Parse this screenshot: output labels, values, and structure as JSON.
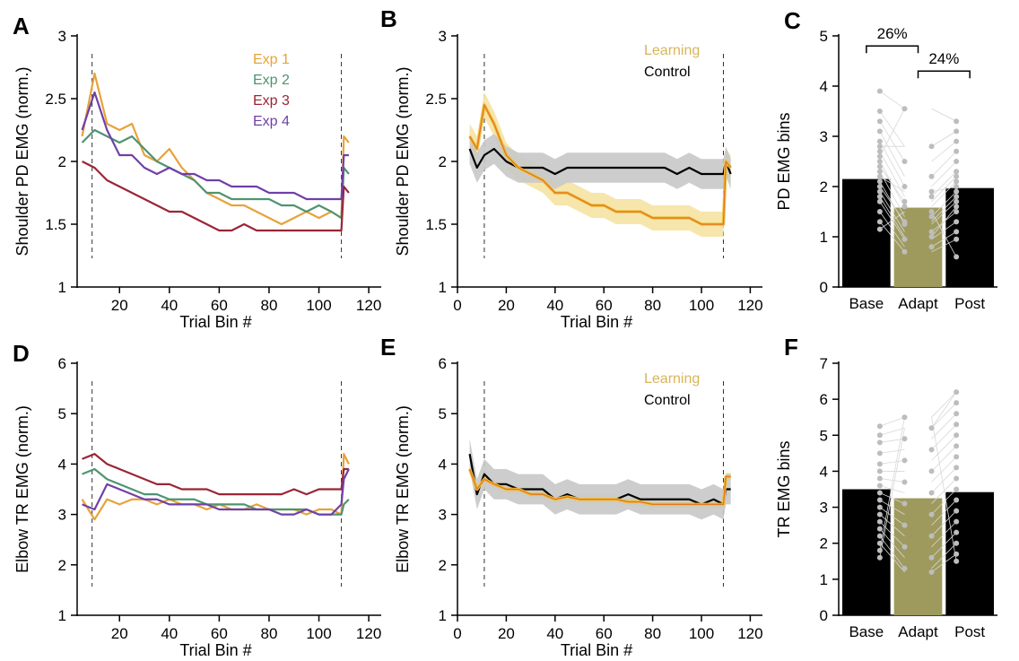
{
  "chart_data": [
    {
      "panel": "A",
      "type": "line",
      "xlabel": "Trial Bin #",
      "ylabel": "Shoulder PD EMG (norm.)",
      "xlim": [
        3,
        125
      ],
      "ylim": [
        1,
        3
      ],
      "xticks": [
        20,
        40,
        60,
        80,
        100,
        120
      ],
      "yticks": [
        1,
        1.5,
        2,
        2.5,
        3
      ],
      "vlines": [
        9,
        109
      ],
      "legend_position": "top-right",
      "colors": {
        "Exp 1": "#e8a23a",
        "Exp 2": "#4e9470",
        "Exp 3": "#9b2535",
        "Exp 4": "#7040a8"
      },
      "series": [
        {
          "name": "Exp 1",
          "x": [
            5,
            10,
            15,
            20,
            25,
            30,
            35,
            40,
            45,
            50,
            55,
            60,
            65,
            70,
            75,
            80,
            85,
            90,
            95,
            100,
            105,
            109,
            110,
            112
          ],
          "y": [
            2.2,
            2.7,
            2.3,
            2.25,
            2.3,
            2.05,
            2.0,
            2.1,
            1.95,
            1.85,
            1.75,
            1.7,
            1.65,
            1.65,
            1.6,
            1.55,
            1.5,
            1.55,
            1.6,
            1.55,
            1.6,
            1.55,
            2.2,
            2.15
          ]
        },
        {
          "name": "Exp 2",
          "x": [
            5,
            10,
            15,
            20,
            25,
            30,
            35,
            40,
            45,
            50,
            55,
            60,
            65,
            70,
            75,
            80,
            85,
            90,
            95,
            100,
            105,
            109,
            110,
            112
          ],
          "y": [
            2.15,
            2.25,
            2.2,
            2.15,
            2.2,
            2.1,
            2.0,
            1.95,
            1.9,
            1.85,
            1.75,
            1.75,
            1.7,
            1.7,
            1.7,
            1.7,
            1.65,
            1.65,
            1.6,
            1.65,
            1.6,
            1.55,
            1.95,
            1.9
          ]
        },
        {
          "name": "Exp 3",
          "x": [
            5,
            10,
            15,
            20,
            25,
            30,
            35,
            40,
            45,
            50,
            55,
            60,
            65,
            70,
            75,
            80,
            85,
            90,
            95,
            100,
            105,
            109,
            110,
            112
          ],
          "y": [
            2.0,
            1.95,
            1.85,
            1.8,
            1.75,
            1.7,
            1.65,
            1.6,
            1.6,
            1.55,
            1.5,
            1.45,
            1.45,
            1.5,
            1.45,
            1.45,
            1.45,
            1.45,
            1.45,
            1.45,
            1.45,
            1.45,
            1.8,
            1.75
          ]
        },
        {
          "name": "Exp 4",
          "x": [
            5,
            10,
            15,
            20,
            25,
            30,
            35,
            40,
            45,
            50,
            55,
            60,
            65,
            70,
            75,
            80,
            85,
            90,
            95,
            100,
            105,
            109,
            110,
            112
          ],
          "y": [
            2.25,
            2.55,
            2.25,
            2.05,
            2.05,
            1.95,
            1.9,
            1.95,
            1.9,
            1.9,
            1.85,
            1.85,
            1.8,
            1.8,
            1.8,
            1.75,
            1.75,
            1.75,
            1.7,
            1.7,
            1.7,
            1.7,
            2.05,
            2.05
          ]
        }
      ]
    },
    {
      "panel": "B",
      "type": "line",
      "xlabel": "Trial Bin #",
      "ylabel": "Shoulder PD EMG (norm.)",
      "xlim": [
        0,
        125
      ],
      "ylim": [
        1,
        3
      ],
      "xticks": [
        0,
        20,
        40,
        60,
        80,
        100,
        120
      ],
      "yticks": [
        1,
        1.5,
        2,
        2.5,
        3
      ],
      "vlines": [
        11,
        109
      ],
      "legend_position": "top-right",
      "colors": {
        "Learning": "#e8a23a",
        "Learning_band": "#f5e3a3",
        "Control": "#000000",
        "Control_band": "#cccccc",
        "Learning_line": "#e07a20"
      },
      "series": [
        {
          "name": "Learning",
          "x": [
            5,
            8,
            11,
            15,
            20,
            25,
            30,
            35,
            40,
            45,
            50,
            55,
            60,
            65,
            70,
            75,
            80,
            85,
            90,
            95,
            100,
            105,
            109,
            110,
            112
          ],
          "y": [
            2.2,
            2.1,
            2.45,
            2.3,
            2.05,
            1.95,
            1.9,
            1.85,
            1.75,
            1.75,
            1.7,
            1.65,
            1.65,
            1.6,
            1.6,
            1.6,
            1.55,
            1.55,
            1.55,
            1.55,
            1.5,
            1.5,
            1.5,
            2.0,
            1.95
          ],
          "err": 0.1
        },
        {
          "name": "Control",
          "x": [
            5,
            8,
            11,
            15,
            20,
            25,
            30,
            35,
            40,
            45,
            50,
            55,
            60,
            65,
            70,
            75,
            80,
            85,
            90,
            95,
            100,
            105,
            109,
            110,
            112
          ],
          "y": [
            2.1,
            1.95,
            2.05,
            2.1,
            2.0,
            1.95,
            1.95,
            1.95,
            1.9,
            1.95,
            1.95,
            1.95,
            1.95,
            1.95,
            1.95,
            1.95,
            1.95,
            1.95,
            1.9,
            1.95,
            1.9,
            1.9,
            1.9,
            2.0,
            1.9
          ],
          "err": 0.12
        }
      ]
    },
    {
      "panel": "C",
      "type": "bar",
      "ylabel": "PD EMG bins",
      "categories": [
        "Base",
        "Adapt",
        "Post"
      ],
      "category_colors": [
        "#000000",
        "#9e9a5e",
        "#000000"
      ],
      "values": [
        2.15,
        1.58,
        1.97
      ],
      "ylim": [
        0,
        5
      ],
      "yticks": [
        0,
        1,
        2,
        3,
        4,
        5
      ],
      "annotations": [
        {
          "text": "26%",
          "from": "Base",
          "to": "Adapt",
          "y": 4.8
        },
        {
          "text": "24%",
          "from": "Adapt",
          "to": "Post",
          "y": 4.3
        }
      ],
      "points": {
        "Base": [
          3.9,
          3.5,
          3.3,
          3.1,
          2.9,
          2.7,
          2.5,
          2.3,
          2.1,
          1.9,
          1.7,
          1.5,
          1.3,
          1.15,
          2.4,
          2.2,
          2.0,
          1.8,
          2.6,
          2.8
        ],
        "Adapt": [
          3.55,
          2.8,
          2.5,
          2.2,
          2.0,
          1.8,
          1.6,
          1.4,
          1.25,
          1.1,
          0.95,
          0.8,
          0.7,
          1.5,
          1.7,
          1.9,
          1.3,
          1.0
        ],
        "Post": [
          3.3,
          3.1,
          2.9,
          2.7,
          2.5,
          2.3,
          2.1,
          1.9,
          1.7,
          1.5,
          1.3,
          1.1,
          0.95,
          0.6,
          2.2,
          2.0,
          1.8,
          1.6
        ]
      }
    },
    {
      "panel": "D",
      "type": "line",
      "xlabel": "Trial Bin #",
      "ylabel": "Elbow TR EMG (norm.)",
      "xlim": [
        3,
        125
      ],
      "ylim": [
        1,
        6
      ],
      "xticks": [
        20,
        40,
        60,
        80,
        100,
        120
      ],
      "yticks": [
        1,
        2,
        3,
        4,
        5,
        6
      ],
      "vlines": [
        9,
        109
      ],
      "series": [
        {
          "name": "Exp 1",
          "x": [
            5,
            10,
            15,
            20,
            25,
            30,
            35,
            40,
            45,
            50,
            55,
            60,
            65,
            70,
            75,
            80,
            85,
            90,
            95,
            100,
            105,
            109,
            110,
            112
          ],
          "y": [
            3.3,
            2.9,
            3.3,
            3.2,
            3.3,
            3.3,
            3.2,
            3.3,
            3.2,
            3.2,
            3.1,
            3.2,
            3.1,
            3.1,
            3.2,
            3.1,
            3.1,
            3.1,
            3.0,
            3.1,
            3.1,
            3.0,
            4.2,
            4.0
          ]
        },
        {
          "name": "Exp 2",
          "x": [
            5,
            10,
            15,
            20,
            25,
            30,
            35,
            40,
            45,
            50,
            55,
            60,
            65,
            70,
            75,
            80,
            85,
            90,
            95,
            100,
            105,
            109,
            110,
            112
          ],
          "y": [
            3.8,
            3.9,
            3.7,
            3.6,
            3.5,
            3.4,
            3.4,
            3.3,
            3.3,
            3.3,
            3.2,
            3.2,
            3.2,
            3.2,
            3.1,
            3.1,
            3.1,
            3.1,
            3.1,
            3.0,
            3.0,
            3.0,
            3.2,
            3.3
          ]
        },
        {
          "name": "Exp 3",
          "x": [
            5,
            10,
            15,
            20,
            25,
            30,
            35,
            40,
            45,
            50,
            55,
            60,
            65,
            70,
            75,
            80,
            85,
            90,
            95,
            100,
            105,
            109,
            110,
            112
          ],
          "y": [
            4.1,
            4.2,
            4.0,
            3.9,
            3.8,
            3.7,
            3.6,
            3.6,
            3.5,
            3.5,
            3.5,
            3.4,
            3.4,
            3.4,
            3.4,
            3.4,
            3.4,
            3.5,
            3.4,
            3.5,
            3.5,
            3.5,
            3.9,
            3.9
          ]
        },
        {
          "name": "Exp 4",
          "x": [
            5,
            10,
            15,
            20,
            25,
            30,
            35,
            40,
            45,
            50,
            55,
            60,
            65,
            70,
            75,
            80,
            85,
            90,
            95,
            100,
            105,
            109,
            110,
            112
          ],
          "y": [
            3.2,
            3.1,
            3.6,
            3.5,
            3.4,
            3.3,
            3.3,
            3.2,
            3.2,
            3.2,
            3.2,
            3.1,
            3.1,
            3.1,
            3.1,
            3.1,
            3.0,
            3.0,
            3.1,
            3.0,
            3.0,
            3.2,
            3.7,
            3.9
          ]
        }
      ]
    },
    {
      "panel": "E",
      "type": "line",
      "xlabel": "Trial Bin #",
      "ylabel": "Elbow TR EMG (norm.)",
      "xlim": [
        0,
        125
      ],
      "ylim": [
        1,
        6
      ],
      "xticks": [
        0,
        20,
        40,
        60,
        80,
        100,
        120
      ],
      "yticks": [
        1,
        2,
        3,
        4,
        5,
        6
      ],
      "vlines": [
        11,
        109
      ],
      "legend_position": "top-right",
      "series": [
        {
          "name": "Learning",
          "x": [
            5,
            8,
            11,
            15,
            20,
            25,
            30,
            35,
            40,
            45,
            50,
            55,
            60,
            65,
            70,
            75,
            80,
            85,
            90,
            95,
            100,
            105,
            109,
            110,
            112
          ],
          "y": [
            3.9,
            3.5,
            3.7,
            3.6,
            3.5,
            3.5,
            3.4,
            3.4,
            3.3,
            3.35,
            3.3,
            3.3,
            3.3,
            3.3,
            3.25,
            3.25,
            3.2,
            3.2,
            3.2,
            3.2,
            3.2,
            3.2,
            3.2,
            3.75,
            3.75
          ],
          "err": 0.08
        },
        {
          "name": "Control",
          "x": [
            5,
            8,
            11,
            15,
            20,
            25,
            30,
            35,
            40,
            45,
            50,
            55,
            60,
            65,
            70,
            75,
            80,
            85,
            90,
            95,
            100,
            105,
            109,
            110,
            112
          ],
          "y": [
            4.2,
            3.4,
            3.8,
            3.6,
            3.6,
            3.5,
            3.5,
            3.5,
            3.3,
            3.4,
            3.3,
            3.3,
            3.3,
            3.3,
            3.4,
            3.3,
            3.3,
            3.3,
            3.3,
            3.3,
            3.2,
            3.3,
            3.2,
            3.5,
            3.5
          ],
          "err": 0.3
        }
      ]
    },
    {
      "panel": "F",
      "type": "bar",
      "ylabel": "TR EMG bins",
      "categories": [
        "Base",
        "Adapt",
        "Post"
      ],
      "category_colors": [
        "#000000",
        "#9e9a5e",
        "#000000"
      ],
      "values": [
        3.5,
        3.25,
        3.42
      ],
      "ylim": [
        0,
        7
      ],
      "yticks": [
        0,
        1,
        2,
        3,
        4,
        5,
        6,
        7
      ],
      "points": {
        "Base": [
          5.25,
          5.0,
          4.8,
          4.5,
          4.2,
          4.0,
          3.8,
          3.6,
          3.4,
          3.2,
          3.0,
          2.8,
          2.6,
          2.4,
          2.2,
          2.0,
          1.8,
          1.6
        ],
        "Adapt": [
          5.5,
          5.2,
          4.9,
          4.6,
          4.3,
          4.0,
          3.7,
          3.4,
          3.1,
          2.8,
          2.5,
          2.2,
          1.9,
          1.6,
          1.3,
          1.2
        ],
        "Post": [
          6.2,
          5.9,
          5.6,
          5.3,
          5.0,
          4.7,
          4.4,
          4.1,
          3.8,
          3.5,
          3.2,
          2.9,
          2.6,
          2.3,
          2.0,
          1.7,
          1.5
        ]
      }
    }
  ]
}
